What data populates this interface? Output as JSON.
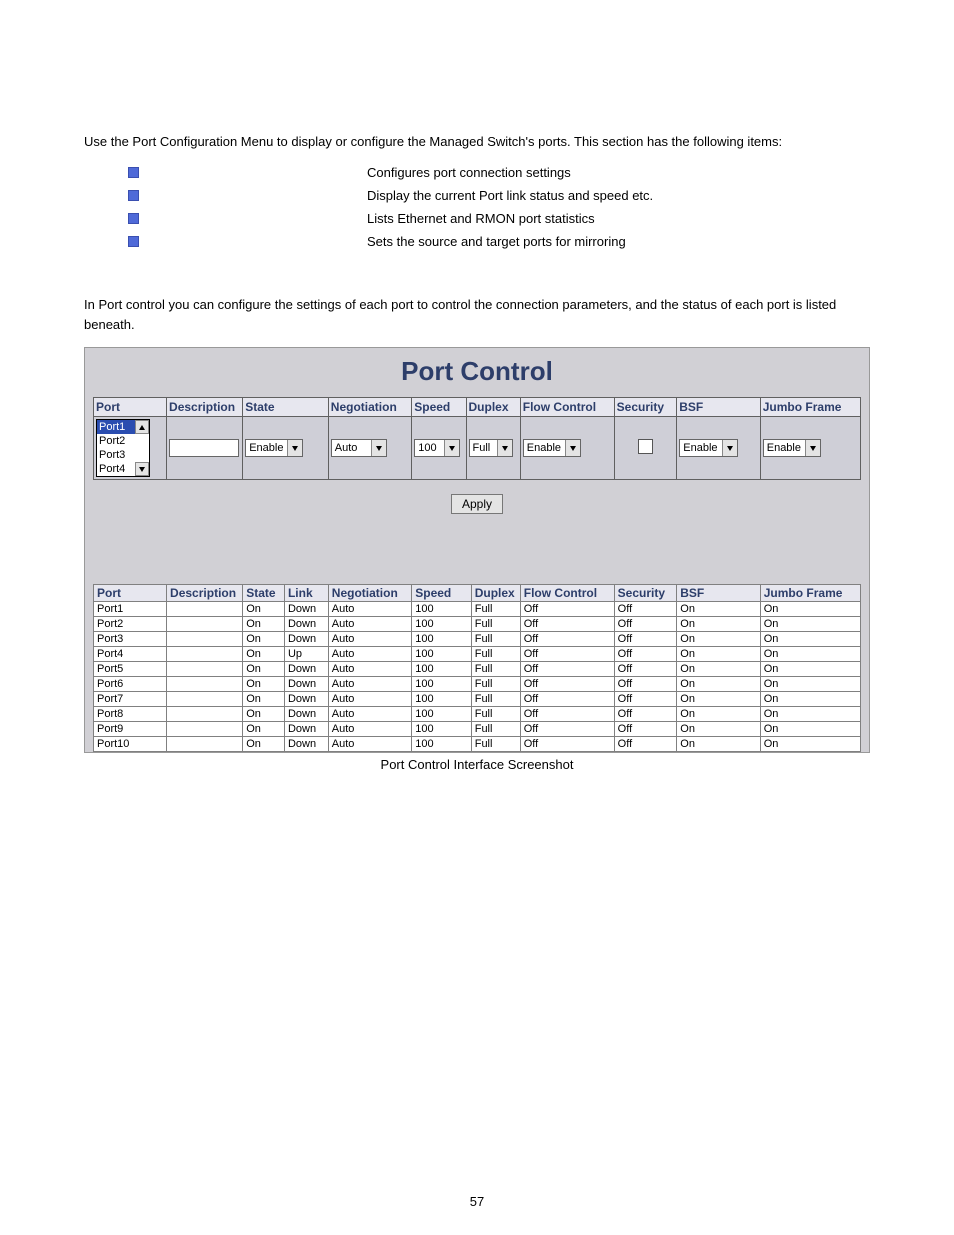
{
  "intro": "Use the Port Configuration Menu to display or configure the Managed Switch's ports. This section has the following items:",
  "bullets": [
    "Configures port connection settings",
    "Display the current Port link status and speed etc.",
    "Lists Ethernet and RMON port statistics",
    "Sets the source and target ports for mirroring"
  ],
  "section_desc": "In Port control you can configure the settings of each port to control the connection parameters, and the status of each port is listed beneath.",
  "panel_title": "Port Control",
  "cfg": {
    "headers": [
      "Port",
      "Description",
      "State",
      "Negotiation",
      "Speed",
      "Duplex",
      "Flow Control",
      "Security",
      "BSF",
      "Jumbo Frame"
    ],
    "port_options": [
      "Port1",
      "Port2",
      "Port3",
      "Port4"
    ],
    "description_value": "",
    "state_value": "Enable",
    "negotiation_value": "Auto",
    "speed_value": "100",
    "duplex_value": "Full",
    "flow_value": "Enable",
    "security_checked": false,
    "bsf_value": "Enable",
    "jumbo_value": "Enable",
    "apply_label": "Apply"
  },
  "status": {
    "headers": [
      "Port",
      "Description",
      "State",
      "Link",
      "Negotiation",
      "Speed",
      "Duplex",
      "Flow Control",
      "Security",
      "BSF",
      "Jumbo Frame"
    ],
    "rows": [
      {
        "port": "Port1",
        "description": "",
        "state": "On",
        "link": "Down",
        "negotiation": "Auto",
        "speed": "100",
        "duplex": "Full",
        "flow": "Off",
        "security": "Off",
        "bsf": "On",
        "jumbo": "On"
      },
      {
        "port": "Port2",
        "description": "",
        "state": "On",
        "link": "Down",
        "negotiation": "Auto",
        "speed": "100",
        "duplex": "Full",
        "flow": "Off",
        "security": "Off",
        "bsf": "On",
        "jumbo": "On"
      },
      {
        "port": "Port3",
        "description": "",
        "state": "On",
        "link": "Down",
        "negotiation": "Auto",
        "speed": "100",
        "duplex": "Full",
        "flow": "Off",
        "security": "Off",
        "bsf": "On",
        "jumbo": "On"
      },
      {
        "port": "Port4",
        "description": "",
        "state": "On",
        "link": "Up",
        "negotiation": "Auto",
        "speed": "100",
        "duplex": "Full",
        "flow": "Off",
        "security": "Off",
        "bsf": "On",
        "jumbo": "On"
      },
      {
        "port": "Port5",
        "description": "",
        "state": "On",
        "link": "Down",
        "negotiation": "Auto",
        "speed": "100",
        "duplex": "Full",
        "flow": "Off",
        "security": "Off",
        "bsf": "On",
        "jumbo": "On"
      },
      {
        "port": "Port6",
        "description": "",
        "state": "On",
        "link": "Down",
        "negotiation": "Auto",
        "speed": "100",
        "duplex": "Full",
        "flow": "Off",
        "security": "Off",
        "bsf": "On",
        "jumbo": "On"
      },
      {
        "port": "Port7",
        "description": "",
        "state": "On",
        "link": "Down",
        "negotiation": "Auto",
        "speed": "100",
        "duplex": "Full",
        "flow": "Off",
        "security": "Off",
        "bsf": "On",
        "jumbo": "On"
      },
      {
        "port": "Port8",
        "description": "",
        "state": "On",
        "link": "Down",
        "negotiation": "Auto",
        "speed": "100",
        "duplex": "Full",
        "flow": "Off",
        "security": "Off",
        "bsf": "On",
        "jumbo": "On"
      },
      {
        "port": "Port9",
        "description": "",
        "state": "On",
        "link": "Down",
        "negotiation": "Auto",
        "speed": "100",
        "duplex": "Full",
        "flow": "Off",
        "security": "Off",
        "bsf": "On",
        "jumbo": "On"
      },
      {
        "port": "Port10",
        "description": "",
        "state": "On",
        "link": "Down",
        "negotiation": "Auto",
        "speed": "100",
        "duplex": "Full",
        "flow": "Off",
        "security": "Off",
        "bsf": "On",
        "jumbo": "On"
      }
    ]
  },
  "caption": "Port Control Interface Screenshot",
  "page_number": "57",
  "colors": {
    "panel_bg": "#d1d0d5",
    "header_text": "#2d3e6a",
    "header_bg": "#e7e7ef",
    "border": "#606060",
    "bullet": "#4f6ad8"
  },
  "col_widths": {
    "cfg": [
      70,
      73,
      82,
      80,
      52,
      52,
      90,
      60,
      80,
      96
    ],
    "status": [
      70,
      73,
      40,
      42,
      80,
      57,
      47,
      90,
      60,
      80,
      96
    ]
  }
}
